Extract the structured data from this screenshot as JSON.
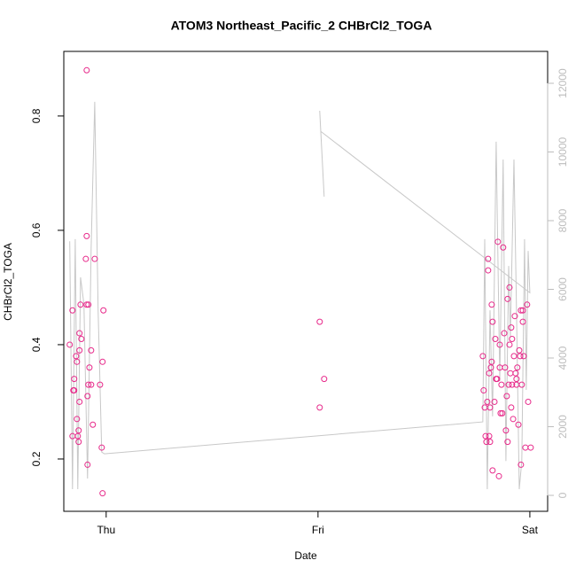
{
  "chart_data": {
    "type": "scatter",
    "title": "ATOM3 Northeast_Pacific_2 CHBrCl2_TOGA",
    "xlabel": "Date",
    "ylabel": "CHBrCl2_TOGA",
    "xlim": [
      -0.2,
      2.084
    ],
    "xticks": [
      {
        "value": 0,
        "label": "Thu"
      },
      {
        "value": 1,
        "label": "Fri"
      },
      {
        "value": 2,
        "label": "Sat"
      }
    ],
    "ylim": [
      0.1085,
      0.913
    ],
    "yticks": [
      0.2,
      0.4,
      0.6,
      0.8
    ],
    "y2lim": [
      -464,
      12929
    ],
    "y2ticks": [
      0,
      2000,
      4000,
      6000,
      8000,
      10000,
      12000
    ],
    "y2color": "#bdbdbd",
    "series": [
      {
        "type": "scatter",
        "color": "#e7298a",
        "x": [
          -0.172,
          -0.159,
          -0.159,
          -0.155,
          -0.151,
          -0.151,
          -0.142,
          -0.138,
          -0.138,
          -0.13,
          -0.134,
          -0.13,
          -0.126,
          -0.126,
          -0.126,
          -0.121,
          -0.117,
          -0.092,
          -0.092,
          -0.096,
          -0.092,
          -0.084,
          -0.088,
          -0.088,
          -0.084,
          -0.079,
          -0.071,
          -0.071,
          -0.063,
          -0.054,
          -0.029,
          -0.021,
          -0.017,
          -0.013,
          -0.017,
          1.008,
          1.008,
          1.029,
          1.778,
          1.782,
          1.787,
          1.791,
          1.795,
          1.799,
          1.803,
          1.803,
          1.808,
          1.808,
          1.812,
          1.812,
          1.816,
          1.82,
          1.82,
          1.824,
          1.824,
          1.833,
          1.837,
          1.841,
          1.845,
          1.849,
          1.854,
          1.858,
          1.858,
          1.862,
          1.866,
          1.87,
          1.874,
          1.879,
          1.883,
          1.887,
          1.891,
          1.895,
          1.895,
          1.9,
          1.904,
          1.904,
          1.908,
          1.912,
          1.912,
          1.916,
          1.916,
          1.921,
          1.925,
          1.929,
          1.933,
          1.937,
          1.937,
          1.941,
          1.946,
          1.95,
          1.954,
          1.958,
          1.958,
          1.962,
          1.967,
          1.967,
          1.971,
          1.979,
          1.987,
          1.992,
          2.004
        ],
        "values": [
          0.4,
          0.46,
          0.24,
          0.32,
          0.32,
          0.34,
          0.38,
          0.37,
          0.27,
          0.25,
          0.24,
          0.23,
          0.39,
          0.3,
          0.42,
          0.47,
          0.41,
          0.88,
          0.59,
          0.55,
          0.47,
          0.47,
          0.31,
          0.19,
          0.33,
          0.36,
          0.33,
          0.39,
          0.26,
          0.55,
          0.33,
          0.22,
          0.37,
          0.46,
          0.14,
          0.44,
          0.29,
          0.34,
          0.38,
          0.32,
          0.29,
          0.24,
          0.23,
          0.3,
          0.55,
          0.53,
          0.35,
          0.24,
          0.29,
          0.23,
          0.36,
          0.37,
          0.47,
          0.18,
          0.44,
          0.3,
          0.41,
          0.34,
          0.34,
          0.58,
          0.17,
          0.36,
          0.4,
          0.28,
          0.33,
          0.28,
          0.57,
          0.42,
          0.36,
          0.25,
          0.31,
          0.23,
          0.48,
          0.33,
          0.5,
          0.4,
          0.35,
          0.43,
          0.29,
          0.33,
          0.41,
          0.27,
          0.38,
          0.45,
          0.35,
          0.34,
          0.33,
          0.36,
          0.26,
          0.39,
          0.38,
          0.46,
          0.19,
          0.33,
          0.44,
          0.46,
          0.38,
          0.22,
          0.47,
          0.3,
          0.22
        ]
      },
      {
        "type": "line",
        "axis": "y2",
        "color": "#c8c8c8",
        "x": [
          -0.172,
          -0.159,
          -0.146,
          -0.134,
          -0.121,
          -0.105,
          -0.088,
          -0.071,
          -0.054,
          -0.038,
          -0.021,
          -0.008,
          1.778,
          1.787,
          1.799,
          1.812,
          1.824,
          1.841,
          1.858,
          1.874,
          1.887,
          1.9,
          1.908,
          1.925,
          1.937,
          1.95,
          1.962,
          1.975,
          1.983,
          1.992,
          2.0,
          1.013,
          1.008,
          1.029
        ],
        "values": [
          7400,
          180,
          7460,
          180,
          6350,
          5570,
          490,
          7200,
          11460,
          5390,
          1260,
          1210,
          2140,
          7460,
          180,
          5390,
          2300,
          10300,
          3330,
          9780,
          1000,
          6680,
          4620,
          9780,
          5390,
          180,
          1000,
          7460,
          3070,
          7120,
          5900,
          10600,
          11200,
          8700
        ]
      }
    ]
  }
}
